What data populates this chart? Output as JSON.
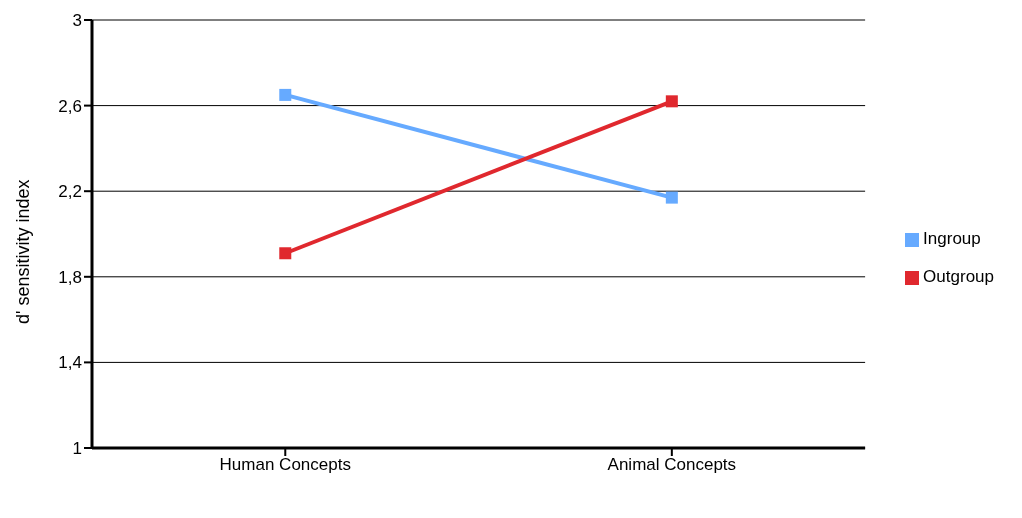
{
  "chart_data": {
    "type": "line",
    "ylabel": "d' sensitivity index",
    "categories": [
      "Human Concepts",
      "Animal Concepts"
    ],
    "series": [
      {
        "name": "Ingroup",
        "color": "#66aaff",
        "values": [
          2.65,
          2.17
        ]
      },
      {
        "name": "Outgroup",
        "color": "#e0282e",
        "values": [
          1.91,
          2.62
        ]
      }
    ],
    "ylim": [
      1,
      3
    ],
    "yticks": [
      1,
      {
        "value": 1.4,
        "label": "1,4"
      },
      {
        "value": 1.8,
        "label": "1,8"
      },
      {
        "value": 2.2,
        "label": "2,2"
      },
      {
        "value": 2.6,
        "label": "2,6"
      },
      3
    ],
    "grid": "y",
    "legend": "right",
    "marker": "square",
    "line_style": "solid"
  }
}
